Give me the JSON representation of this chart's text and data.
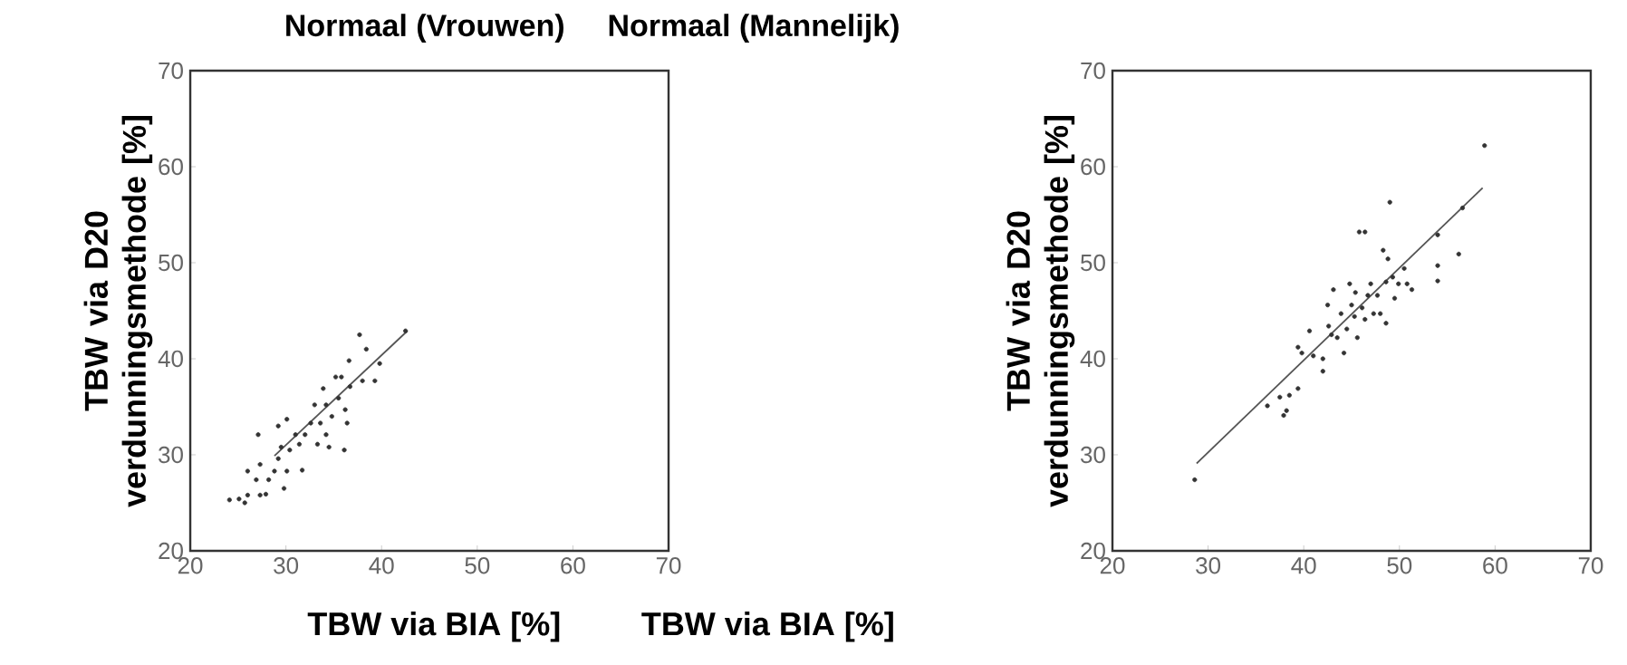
{
  "chart_data": [
    {
      "type": "scatter",
      "title": "Normaal (Vrouwen)",
      "xlabel": "TBW via BIA [%]",
      "ylabel": "TBW via D20 verdunningsmethode [%]",
      "xlim": [
        20,
        70
      ],
      "ylim": [
        20,
        70
      ],
      "xticks": [
        20,
        30,
        40,
        50,
        60,
        70
      ],
      "yticks": [
        20,
        30,
        40,
        50,
        60,
        70
      ],
      "grid": false,
      "series": [
        {
          "marker": "circle",
          "color": "#333333",
          "x": [
            24.1,
            25.7,
            26.0,
            25.1,
            27.3,
            27.9,
            26.0,
            26.9,
            27.3,
            28.2,
            27.1,
            28.8,
            29.2,
            29.8,
            29.5,
            30.1,
            29.2,
            30.1,
            30.4,
            31.0,
            31.7,
            31.4,
            32.0,
            32.6,
            33.0,
            33.3,
            33.6,
            33.9,
            34.2,
            34.2,
            34.5,
            34.8,
            35.2,
            35.5,
            35.8,
            36.1,
            36.2,
            36.4,
            36.6,
            36.7,
            37.7,
            38.0,
            38.4,
            39.3,
            39.8,
            42.5
          ],
          "values": [
            25.3,
            25.0,
            25.8,
            25.4,
            25.8,
            25.9,
            28.3,
            27.4,
            29.0,
            27.4,
            32.1,
            28.3,
            29.6,
            26.5,
            30.8,
            28.3,
            33.0,
            33.7,
            30.5,
            32.1,
            28.4,
            31.1,
            32.1,
            33.3,
            35.2,
            31.1,
            33.3,
            36.9,
            35.2,
            32.1,
            30.8,
            34.0,
            38.1,
            35.9,
            38.1,
            30.5,
            34.7,
            33.3,
            39.8,
            37.1,
            42.5,
            37.7,
            41.0,
            37.7,
            39.5,
            42.9
          ]
        },
        {
          "type": "line",
          "marker": "none",
          "color": "#555555",
          "x": [
            28.8,
            42.7
          ],
          "values": [
            29.9,
            42.9
          ]
        }
      ]
    },
    {
      "type": "scatter",
      "title": "Normaal (Mannelijk)",
      "xlabel": "TBW via BIA [%]",
      "ylabel": "TBW via D20 verdunningsmethode [%]",
      "xlim": [
        20,
        70
      ],
      "ylim": [
        20,
        70
      ],
      "xticks": [
        20,
        30,
        40,
        50,
        60,
        70
      ],
      "yticks": [
        20,
        30,
        40,
        50,
        60,
        70
      ],
      "grid": false,
      "series": [
        {
          "marker": "circle",
          "color": "#333333",
          "x": [
            28.6,
            36.2,
            37.5,
            37.9,
            38.2,
            38.5,
            39.4,
            39.4,
            39.8,
            40.6,
            41.0,
            42.0,
            42.0,
            42.5,
            42.6,
            42.9,
            43.1,
            43.5,
            43.9,
            44.2,
            44.5,
            44.8,
            45.0,
            45.3,
            45.4,
            45.6,
            45.8,
            46.4,
            46.1,
            46.4,
            46.7,
            47.0,
            47.3,
            47.7,
            48.0,
            48.3,
            48.6,
            48.6,
            48.8,
            49.0,
            49.3,
            49.5,
            49.9,
            50.5,
            50.8,
            51.3,
            54.0,
            54.0,
            54.0,
            56.2,
            56.6,
            58.9
          ],
          "values": [
            27.4,
            35.1,
            36.0,
            34.1,
            34.6,
            36.2,
            36.9,
            41.2,
            40.6,
            42.9,
            40.3,
            40.0,
            38.7,
            45.6,
            43.4,
            42.5,
            47.2,
            42.2,
            44.7,
            40.6,
            43.1,
            47.8,
            45.6,
            44.4,
            46.9,
            42.2,
            53.2,
            53.2,
            45.3,
            44.1,
            46.6,
            47.8,
            44.7,
            46.6,
            44.7,
            51.3,
            48.0,
            43.7,
            50.4,
            56.3,
            48.5,
            46.3,
            47.8,
            49.4,
            47.8,
            47.2,
            49.7,
            48.1,
            52.9,
            50.9,
            55.7,
            62.2
          ]
        },
        {
          "type": "line",
          "marker": "none",
          "color": "#555555",
          "x": [
            28.8,
            58.7
          ],
          "values": [
            29.1,
            57.8
          ]
        }
      ]
    }
  ]
}
